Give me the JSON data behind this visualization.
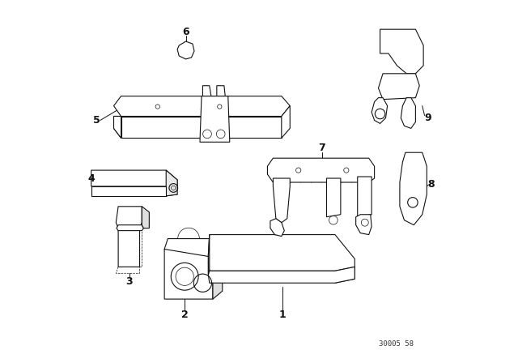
{
  "background_color": "#ffffff",
  "line_color": "#111111",
  "text_color": "#111111",
  "catalog_number": "30005 58",
  "label_fontsize": 9
}
